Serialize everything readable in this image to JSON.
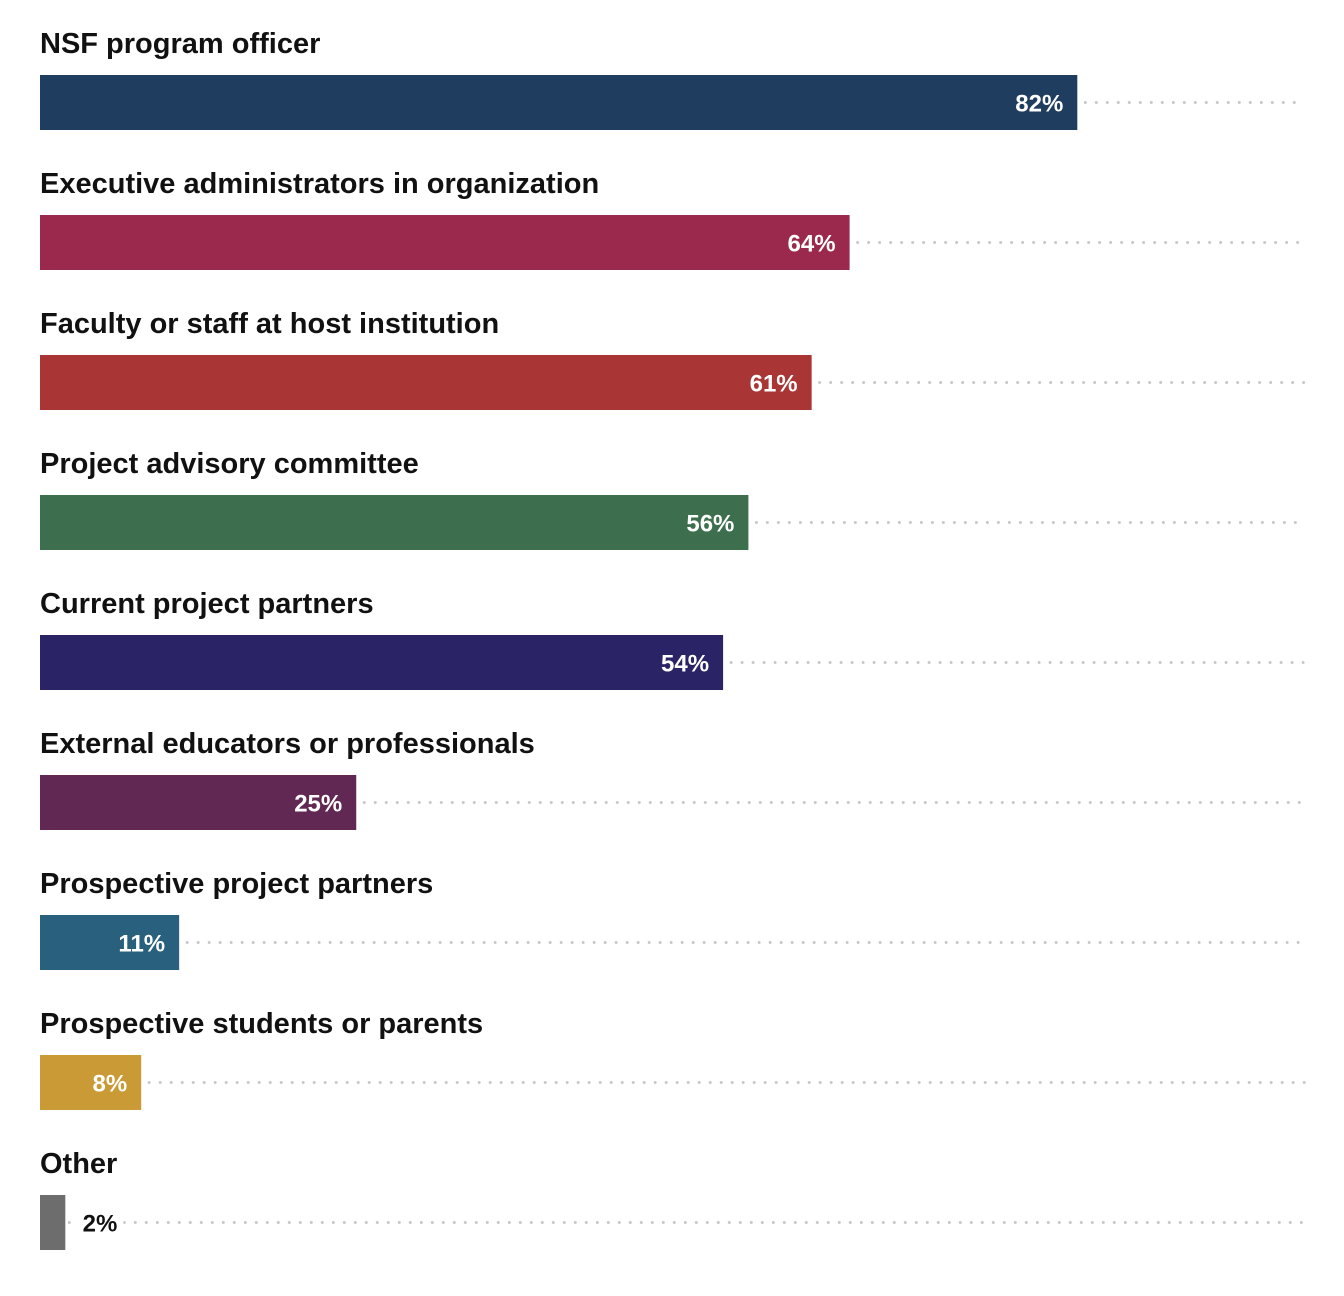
{
  "chart_data": {
    "type": "bar",
    "orientation": "horizontal",
    "categories": [
      "NSF program officer",
      "Executive administrators in organization",
      "Faculty or staff at host institution",
      "Project advisory committee",
      "Current project partners",
      "External educators or professionals",
      "Prospective project partners",
      "Prospective students or parents",
      "Other"
    ],
    "values": [
      82,
      64,
      61,
      56,
      54,
      25,
      11,
      8,
      2
    ],
    "value_labels": [
      "82%",
      "64%",
      "61%",
      "56%",
      "54%",
      "25%",
      "11%",
      "8%",
      "2%"
    ],
    "colors": [
      "#1e3d5f",
      "#9b284d",
      "#aa3535",
      "#3d6e4e",
      "#2a2466",
      "#612853",
      "#28607e",
      "#c99a35",
      "#6d6d6d"
    ],
    "xlim": [
      0,
      100
    ],
    "unit": "%",
    "grid": false,
    "legend": "none",
    "guide_lines": "dotted"
  }
}
